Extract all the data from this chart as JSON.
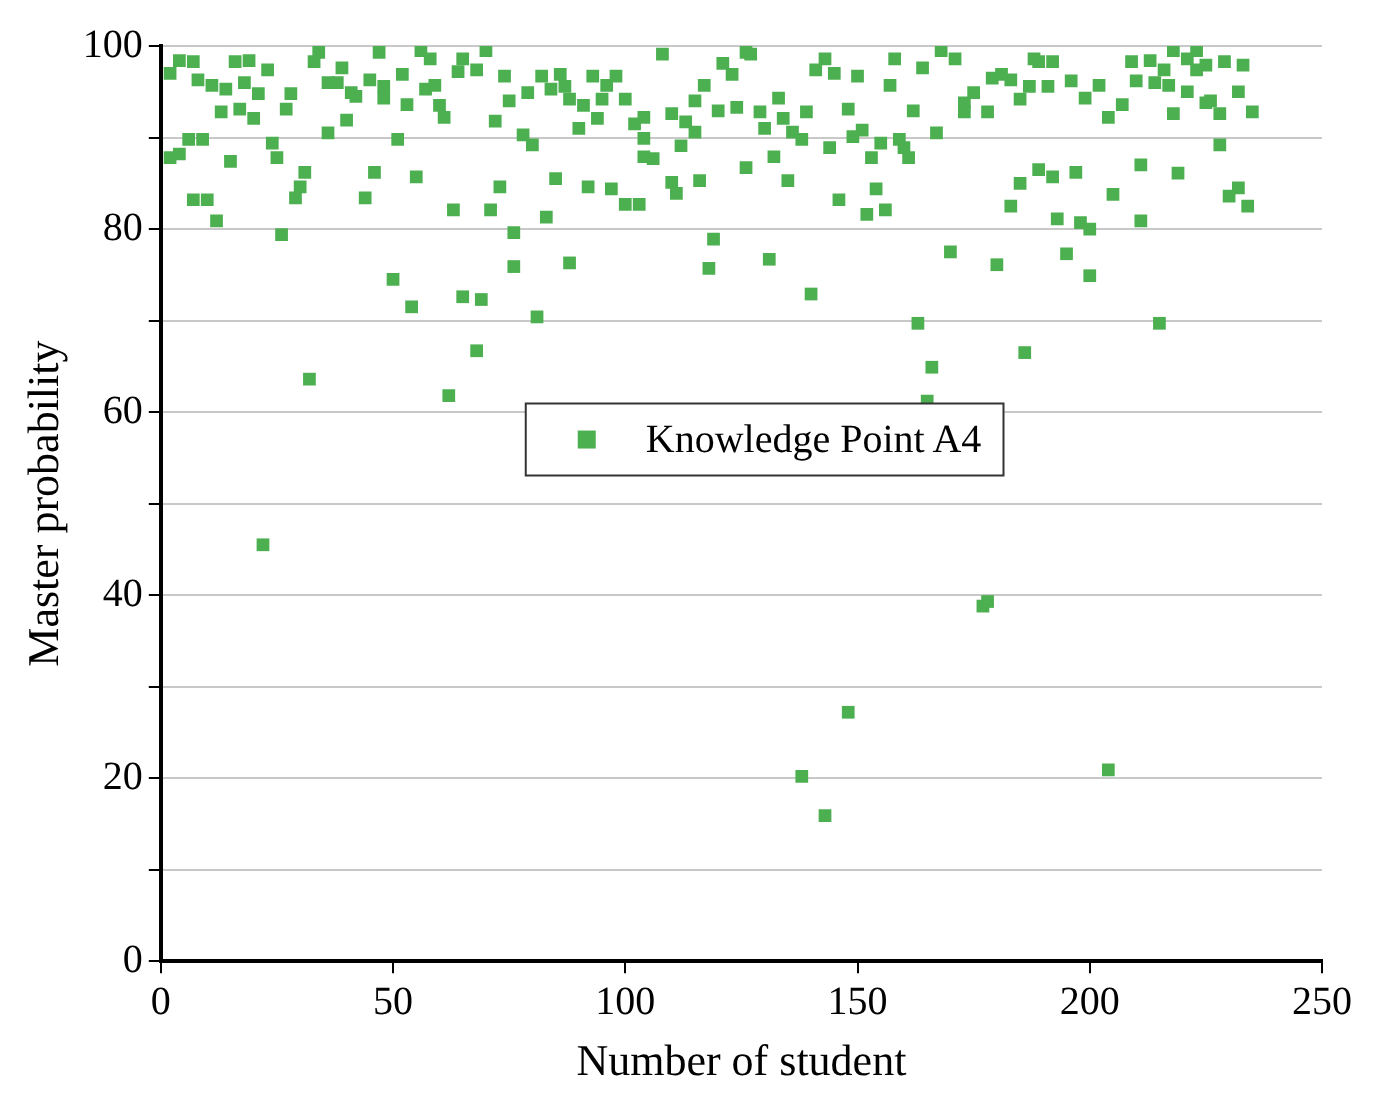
{
  "chart_data": {
    "type": "scatter",
    "xlabel": "Number of student",
    "ylabel": "Master probability",
    "xlim": [
      0,
      250
    ],
    "xticks": [
      0,
      50,
      100,
      150,
      200,
      250
    ],
    "ylim": [
      0,
      100
    ],
    "yticks": [
      0,
      {
        "value": 10,
        "label": null
      },
      20,
      {
        "value": 30,
        "label": null
      },
      40,
      {
        "value": 50,
        "label": null
      },
      60,
      {
        "value": 70,
        "label": null
      },
      80,
      {
        "value": 90,
        "label": null
      },
      100
    ],
    "grid": "y",
    "legend": "center",
    "marker": "square",
    "series": [
      {
        "name": "Knowledge Point A4",
        "color": "#4caf50",
        "x": [
          2,
          4,
          7,
          8,
          11,
          14,
          13,
          16,
          19,
          18,
          17,
          21,
          20,
          23,
          28,
          27,
          33,
          34,
          36,
          39,
          38,
          41,
          42,
          45,
          48,
          48,
          47,
          52,
          53,
          56,
          58,
          57,
          59,
          60,
          61,
          64,
          65,
          36,
          40,
          51,
          2,
          4,
          6,
          9,
          15,
          24,
          25,
          31,
          30,
          29,
          7,
          10,
          12,
          26,
          46,
          44,
          55,
          63,
          50,
          54,
          65,
          32,
          62,
          22,
          70,
          68,
          74,
          75,
          79,
          72,
          82,
          84,
          86,
          87,
          88,
          91,
          90,
          93,
          94,
          95,
          96,
          98,
          100,
          102,
          104,
          108,
          110,
          113,
          115,
          117,
          120,
          124,
          121,
          123,
          126,
          129,
          115,
          112,
          104,
          104,
          106,
          78,
          80,
          126,
          71,
          73,
          76,
          83,
          85,
          92,
          97,
          100,
          103,
          110,
          111,
          116,
          119,
          118,
          76,
          88,
          69,
          81,
          68,
          127,
          143,
          141,
          145,
          150,
          158,
          164,
          168,
          171,
          157,
          133,
          130,
          134,
          139,
          136,
          138,
          148,
          149,
          151,
          144,
          153,
          155,
          159,
          160,
          161,
          162,
          167,
          173,
          175,
          173,
          178,
          179,
          181,
          183,
          185,
          187,
          191,
          188,
          189,
          192,
          132,
          135,
          146,
          154,
          152,
          156,
          185,
          183,
          189,
          192,
          193,
          131,
          140,
          170,
          180,
          163,
          166,
          165,
          186,
          196,
          199,
          202,
          204,
          207,
          209,
          210,
          213,
          214,
          216,
          217,
          218,
          221,
          223,
          223,
          225,
          221,
          218,
          225,
          226,
          228,
          229,
          233,
          232,
          235,
          228,
          197,
          205,
          211,
          219,
          230,
          232,
          234,
          198,
          200,
          211,
          195,
          200,
          215,
          177,
          178,
          148,
          138,
          143,
          204
        ],
        "values": [
          97.0,
          98.4,
          98.3,
          96.3,
          95.7,
          95.3,
          92.8,
          98.3,
          98.4,
          96.0,
          93.1,
          94.8,
          92.1,
          97.4,
          94.8,
          93.1,
          98.3,
          99.3,
          96.0,
          97.6,
          96.0,
          94.9,
          94.5,
          96.3,
          95.6,
          94.3,
          99.3,
          96.9,
          93.6,
          99.5,
          98.6,
          95.3,
          95.7,
          93.5,
          92.2,
          97.2,
          98.6,
          90.5,
          91.9,
          89.8,
          87.8,
          88.2,
          89.8,
          89.8,
          87.4,
          89.4,
          87.8,
          86.2,
          84.6,
          83.4,
          83.2,
          83.2,
          80.9,
          79.4,
          86.2,
          83.4,
          85.7,
          82.1,
          74.5,
          71.5,
          72.6,
          63.6,
          61.8,
          45.5,
          99.5,
          97.4,
          96.7,
          94.0,
          94.9,
          91.8,
          96.7,
          95.3,
          96.9,
          95.6,
          94.2,
          93.5,
          91.0,
          96.7,
          92.1,
          94.2,
          95.7,
          96.7,
          94.2,
          91.5,
          92.2,
          99.1,
          92.6,
          91.7,
          94.0,
          95.7,
          92.9,
          93.3,
          98.1,
          96.9,
          99.3,
          92.8,
          90.6,
          89.1,
          89.9,
          87.9,
          87.7,
          90.3,
          89.2,
          86.7,
          82.1,
          84.6,
          79.6,
          81.3,
          85.5,
          84.6,
          84.4,
          82.7,
          82.7,
          85.1,
          83.9,
          85.3,
          78.9,
          75.7,
          75.9,
          76.3,
          72.3,
          70.4,
          66.7,
          99.1,
          98.6,
          97.4,
          97.0,
          96.7,
          98.6,
          97.6,
          99.5,
          98.6,
          95.7,
          94.3,
          91.0,
          92.1,
          92.8,
          90.6,
          89.8,
          93.1,
          90.1,
          90.8,
          88.9,
          87.8,
          89.4,
          89.8,
          88.9,
          87.8,
          92.9,
          90.5,
          93.8,
          94.9,
          92.8,
          92.8,
          96.5,
          96.9,
          96.3,
          94.2,
          95.6,
          95.6,
          98.6,
          98.3,
          98.3,
          87.9,
          85.3,
          83.2,
          84.4,
          81.6,
          82.1,
          85.0,
          82.5,
          86.5,
          85.7,
          81.1,
          76.7,
          72.9,
          77.5,
          76.1,
          69.7,
          64.9,
          61.2,
          66.5,
          96.2,
          94.3,
          95.7,
          92.2,
          93.6,
          98.3,
          96.2,
          98.4,
          96.0,
          97.4,
          95.7,
          99.5,
          98.6,
          99.5,
          97.4,
          97.9,
          95.0,
          92.6,
          93.8,
          94.0,
          92.6,
          98.3,
          97.9,
          95.0,
          92.8,
          89.2,
          86.2,
          83.8,
          87.0,
          86.1,
          83.6,
          84.5,
          82.5,
          80.7,
          80.0,
          80.9,
          77.3,
          74.9,
          69.7,
          38.8,
          39.3,
          27.2,
          20.2,
          15.9,
          20.9
        ]
      }
    ]
  }
}
